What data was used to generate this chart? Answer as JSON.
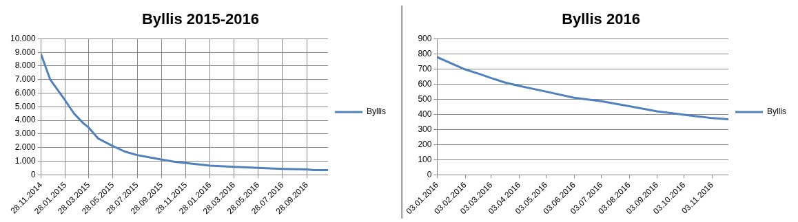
{
  "chart_data": [
    {
      "type": "line",
      "title": "Byllis 2015-2016",
      "x": [
        "2014-11-28",
        "2014-12-21",
        "2015-01-28",
        "2015-02-19",
        "2015-03-14",
        "2015-03-28",
        "2015-04-21",
        "2015-05-28",
        "2015-06-27",
        "2015-07-28",
        "2015-08-31",
        "2015-09-28",
        "2015-11-01",
        "2015-11-28",
        "2016-01-04",
        "2016-01-28",
        "2016-03-28",
        "2016-05-28",
        "2016-07-28",
        "2016-09-28",
        "2016-10-15",
        "2016-11-20"
      ],
      "series": [
        {
          "name": "Byllis",
          "color": "#4f81bd",
          "values": [
            8850,
            6990,
            5450,
            4500,
            3800,
            3470,
            2660,
            2110,
            1710,
            1450,
            1270,
            1120,
            950,
            860,
            750,
            680,
            590,
            510,
            440,
            400,
            350,
            350
          ]
        }
      ],
      "xlim": [
        "2014-11-28",
        "2016-11-20"
      ],
      "xticks": [
        {
          "value": "2014-11-28",
          "label": "28.11.2014"
        },
        {
          "value": "2015-01-28",
          "label": "28.01.2015"
        },
        {
          "value": "2015-03-28",
          "label": "28.03.2015"
        },
        {
          "value": "2015-05-28",
          "label": "28.05.2015"
        },
        {
          "value": "2015-07-28",
          "label": "28.07.2015"
        },
        {
          "value": "2015-09-28",
          "label": "28.09.2015"
        },
        {
          "value": "2015-11-28",
          "label": "28.11.2015"
        },
        {
          "value": "2016-01-28",
          "label": "28.01.2016"
        },
        {
          "value": "2016-03-28",
          "label": "28.03.2016"
        },
        {
          "value": "2016-05-28",
          "label": "28.05.2016"
        },
        {
          "value": "2016-07-28",
          "label": "28.07.2016"
        },
        {
          "value": "2016-09-28",
          "label": "28.09.2016"
        }
      ],
      "ylim": [
        0,
        10000
      ],
      "yticks": [
        0,
        {
          "value": 1000,
          "label": "1.000"
        },
        {
          "value": 2000,
          "label": "2.000"
        },
        {
          "value": 3000,
          "label": "3.000"
        },
        {
          "value": 4000,
          "label": "4.000"
        },
        {
          "value": 5000,
          "label": "5.000"
        },
        {
          "value": 6000,
          "label": "6.000"
        },
        {
          "value": 7000,
          "label": "7.000"
        },
        {
          "value": 8000,
          "label": "8.000"
        },
        {
          "value": 9000,
          "label": "9.000"
        },
        {
          "value": 10000,
          "label": "10.000"
        }
      ],
      "grid": true,
      "legend": "right",
      "marker": "none",
      "line_style": "solid"
    },
    {
      "type": "line",
      "title": "Byllis 2016",
      "x": [
        "2016-01-03",
        "2016-02-03",
        "2016-02-20",
        "2016-03-03",
        "2016-03-18",
        "2016-04-03",
        "2016-05-03",
        "2016-06-03",
        "2016-07-03",
        "2016-08-03",
        "2016-09-03",
        "2016-10-03",
        "2016-10-20",
        "2016-11-03",
        "2016-11-21"
      ],
      "series": [
        {
          "name": "Byllis",
          "color": "#4f81bd",
          "values": [
            778,
            697,
            665,
            640,
            611,
            588,
            550,
            510,
            487,
            454,
            420,
            397,
            385,
            375,
            368
          ]
        }
      ],
      "xlim": [
        "2016-01-03",
        "2016-11-21"
      ],
      "xticks": [
        {
          "value": "2016-01-03",
          "label": "03.01.2016"
        },
        {
          "value": "2016-02-03",
          "label": "03.02.2016"
        },
        {
          "value": "2016-03-03",
          "label": "03.03.2016"
        },
        {
          "value": "2016-04-03",
          "label": "03.04.2016"
        },
        {
          "value": "2016-05-03",
          "label": "03.05.2016"
        },
        {
          "value": "2016-06-03",
          "label": "03.06.2016"
        },
        {
          "value": "2016-07-03",
          "label": "03.07.2016"
        },
        {
          "value": "2016-08-03",
          "label": "03.08.2016"
        },
        {
          "value": "2016-09-03",
          "label": "03.09.2016"
        },
        {
          "value": "2016-10-03",
          "label": "03.10.2016"
        },
        {
          "value": "2016-11-03",
          "label": "03.11.2016"
        }
      ],
      "ylim": [
        0,
        900
      ],
      "yticks": [
        0,
        100,
        200,
        300,
        400,
        500,
        600,
        700,
        800,
        900
      ],
      "grid": "y",
      "legend": "right",
      "marker": "none",
      "line_style": "solid"
    }
  ]
}
